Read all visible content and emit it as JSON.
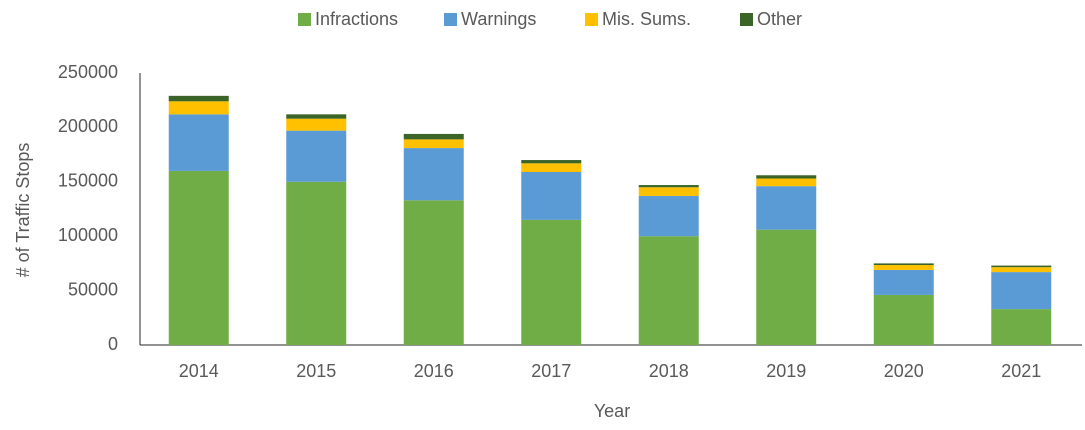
{
  "chart_data": {
    "type": "stacked_bar",
    "categories": [
      "2014",
      "2015",
      "2016",
      "2017",
      "2018",
      "2019",
      "2020",
      "2021"
    ],
    "series": [
      {
        "name": "Infractions",
        "color": "#70ad47",
        "values": [
          160000,
          150000,
          133000,
          115000,
          100000,
          106000,
          46000,
          33000
        ]
      },
      {
        "name": "Warnings",
        "color": "#5b9bd5",
        "values": [
          52000,
          47000,
          48000,
          44000,
          37000,
          40000,
          23000,
          34000
        ]
      },
      {
        "name": "Mis. Sums.",
        "color": "#ffc000",
        "values": [
          12000,
          11000,
          8000,
          8000,
          8000,
          7000,
          4500,
          4500
        ]
      },
      {
        "name": "Other",
        "color": "#3b6428",
        "values": [
          5000,
          4000,
          5000,
          3000,
          2000,
          3000,
          1500,
          1500
        ]
      }
    ],
    "ylim": [
      0,
      250000
    ],
    "yticks": [
      0,
      50000,
      100000,
      150000,
      200000,
      250000
    ],
    "xlabel": "Year",
    "ylabel": "# of Traffic Stops",
    "legend": "top"
  }
}
